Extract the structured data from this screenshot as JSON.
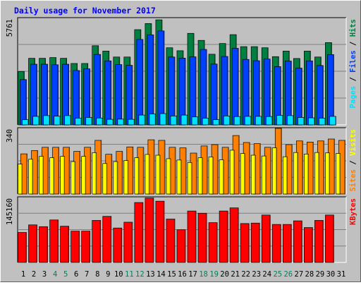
{
  "title": "Daily usage for November 2017",
  "colors": {
    "background": "#c0c0c0",
    "title": "#0000ff",
    "hits": "#008040",
    "files": "#0040ff",
    "pages": "#00e0ff",
    "visits": "#ff8000",
    "sites": "#ffff00",
    "kbytes": "#ff0000",
    "weekend_label": "#00805c",
    "normal_label": "#000000"
  },
  "chart_data": [
    {
      "type": "bar",
      "panel": "top",
      "ymax_label": "5761",
      "ylim": [
        0,
        5761
      ],
      "legend": [
        "Pages",
        "Files",
        "Hits"
      ],
      "categories": [
        "1",
        "2",
        "3",
        "4",
        "5",
        "6",
        "7",
        "8",
        "9",
        "10",
        "11",
        "12",
        "13",
        "14",
        "15",
        "16",
        "17",
        "18",
        "19",
        "20",
        "21",
        "22",
        "23",
        "24",
        "25",
        "26",
        "27",
        "28",
        "29",
        "30",
        "31"
      ],
      "series": [
        {
          "name": "Hits",
          "values": [
            2890,
            3600,
            3600,
            3640,
            3600,
            3320,
            3320,
            4280,
            3990,
            3670,
            3670,
            5150,
            5480,
            5680,
            4170,
            4010,
            4950,
            4570,
            3820,
            4400,
            4880,
            4230,
            4230,
            4170,
            3690,
            3990,
            3590,
            3990,
            3670,
            4450,
            null
          ]
        },
        {
          "name": "Files",
          "values": [
            2450,
            3280,
            3280,
            3250,
            3280,
            2940,
            3030,
            3810,
            3460,
            3260,
            3220,
            4620,
            4870,
            5080,
            3670,
            3610,
            3680,
            4080,
            3290,
            3700,
            4140,
            3540,
            3470,
            3560,
            3150,
            3450,
            3070,
            3460,
            3210,
            3800,
            null
          ]
        },
        {
          "name": "Pages",
          "values": [
            280,
            460,
            500,
            470,
            500,
            360,
            400,
            370,
            300,
            310,
            300,
            530,
            590,
            610,
            480,
            530,
            430,
            360,
            280,
            480,
            450,
            460,
            460,
            450,
            510,
            500,
            400,
            380,
            360,
            460,
            null
          ]
        }
      ]
    },
    {
      "type": "bar",
      "panel": "middle",
      "ymax_label": "340",
      "ylim": [
        0,
        340
      ],
      "legend": [
        "Sites",
        "Visits"
      ],
      "categories": [
        "1",
        "2",
        "3",
        "4",
        "5",
        "6",
        "7",
        "8",
        "9",
        "10",
        "11",
        "12",
        "13",
        "14",
        "15",
        "16",
        "17",
        "18",
        "19",
        "20",
        "21",
        "22",
        "23",
        "24",
        "25",
        "26",
        "27",
        "28",
        "29",
        "30",
        "31"
      ],
      "series": [
        {
          "name": "Visits",
          "values": [
            208,
            225,
            242,
            242,
            242,
            221,
            242,
            278,
            206,
            221,
            244,
            242,
            281,
            278,
            242,
            239,
            212,
            249,
            256,
            242,
            303,
            267,
            261,
            242,
            340,
            256,
            275,
            269,
            275,
            285,
            278
          ]
        },
        {
          "name": "Sites",
          "values": [
            155,
            180,
            195,
            188,
            195,
            168,
            195,
            214,
            158,
            168,
            173,
            188,
            205,
            201,
            183,
            176,
            163,
            188,
            192,
            177,
            227,
            210,
            201,
            197,
            239,
            193,
            215,
            207,
            215,
            213,
            210
          ]
        }
      ]
    },
    {
      "type": "bar",
      "panel": "bottom",
      "ymax_label": "145160",
      "ylim": [
        0,
        145160
      ],
      "legend": [
        "KBytes"
      ],
      "categories": [
        "1",
        "2",
        "3",
        "4",
        "5",
        "6",
        "7",
        "8",
        "9",
        "10",
        "11",
        "12",
        "13",
        "14",
        "15",
        "16",
        "17",
        "18",
        "19",
        "20",
        "21",
        "22",
        "23",
        "24",
        "25",
        "26",
        "27",
        "28",
        "29",
        "30",
        "31"
      ],
      "series": [
        {
          "name": "KBytes",
          "values": [
            67000,
            84000,
            80000,
            95000,
            81000,
            70000,
            70000,
            94000,
            103000,
            77000,
            90000,
            134000,
            144000,
            137000,
            97000,
            73000,
            115000,
            110000,
            89000,
            115000,
            122000,
            87000,
            88000,
            106000,
            85000,
            85000,
            93000,
            78000,
            94000,
            106000,
            null
          ]
        }
      ]
    }
  ],
  "x_labels": [
    "1",
    "2",
    "3",
    "4",
    "5",
    "6",
    "7",
    "8",
    "9",
    "10",
    "11",
    "12",
    "13",
    "14",
    "15",
    "16",
    "17",
    "18",
    "19",
    "20",
    "21",
    "22",
    "23",
    "24",
    "25",
    "26",
    "27",
    "28",
    "29",
    "30",
    "31"
  ],
  "weekend_days": [
    "4",
    "5",
    "11",
    "12",
    "18",
    "19",
    "25",
    "26"
  ]
}
